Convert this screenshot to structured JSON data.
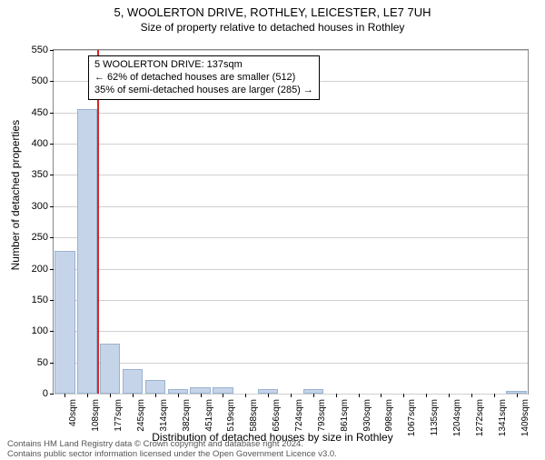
{
  "title": "5, WOOLERTON DRIVE, ROTHLEY, LEICESTER, LE7 7UH",
  "subtitle": "Size of property relative to detached houses in Rothley",
  "chart": {
    "type": "histogram",
    "ylabel": "Number of detached properties",
    "xlabel": "Distribution of detached houses by size in Rothley",
    "ylim": [
      0,
      550
    ],
    "ytick_step": 50,
    "xticks": [
      "40sqm",
      "108sqm",
      "177sqm",
      "245sqm",
      "314sqm",
      "382sqm",
      "451sqm",
      "519sqm",
      "588sqm",
      "656sqm",
      "724sqm",
      "793sqm",
      "861sqm",
      "930sqm",
      "998sqm",
      "1067sqm",
      "1135sqm",
      "1204sqm",
      "1272sqm",
      "1341sqm",
      "1409sqm"
    ],
    "bars": [
      228,
      455,
      80,
      40,
      22,
      8,
      10,
      10,
      0,
      8,
      0,
      8,
      0,
      0,
      0,
      0,
      0,
      0,
      0,
      0,
      5
    ],
    "bar_fill": "#c5d4e8",
    "bar_border": "#9ab2d0",
    "marker_color": "#d62728",
    "marker_sqm": 137,
    "grid_color": "#d0d0d0",
    "background_color": "#ffffff"
  },
  "annotation": {
    "line1": "5 WOOLERTON DRIVE: 137sqm",
    "line2": "← 62% of detached houses are smaller (512)",
    "line3": "35% of semi-detached houses are larger (285) →"
  },
  "footer": {
    "line1": "Contains HM Land Registry data © Crown copyright and database right 2024.",
    "line2": "Contains public sector information licensed under the Open Government Licence v3.0."
  }
}
